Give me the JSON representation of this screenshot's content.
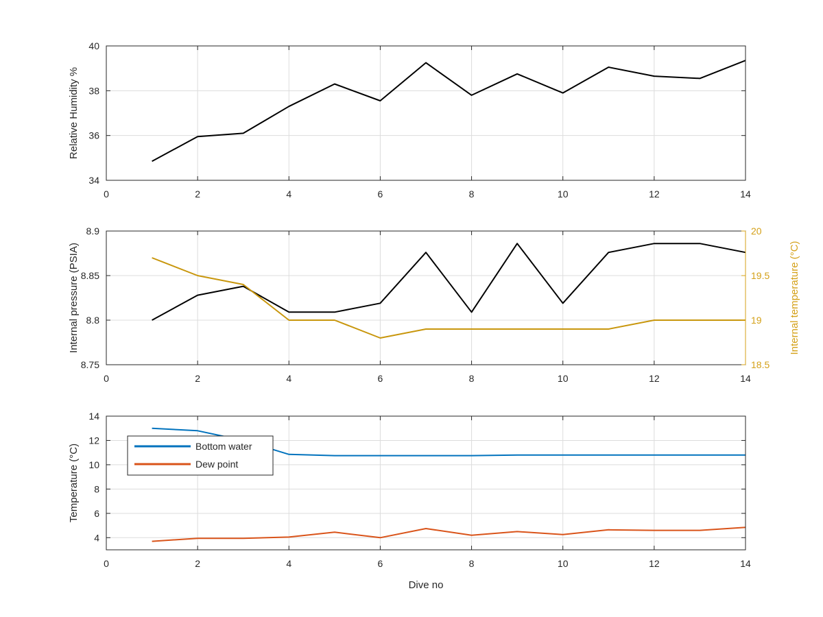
{
  "figure": {
    "background": "#ffffff"
  },
  "chart_data": [
    {
      "id": "humidity",
      "type": "line",
      "xlabel": "",
      "ylabel": "Relative Humidity %",
      "xlim": [
        0,
        14
      ],
      "ylim": [
        34,
        40
      ],
      "xticks": [
        0,
        2,
        4,
        6,
        8,
        10,
        12,
        14
      ],
      "yticks": [
        34,
        36,
        38,
        40
      ],
      "grid": true,
      "x": [
        1,
        2,
        3,
        4,
        5,
        6,
        7,
        8,
        9,
        10,
        11,
        12,
        13,
        14
      ],
      "series": [
        {
          "color": "#000000",
          "values": [
            34.85,
            35.95,
            36.1,
            37.3,
            38.3,
            37.55,
            39.25,
            37.8,
            38.75,
            37.9,
            39.05,
            38.65,
            38.55,
            39.35
          ]
        }
      ]
    },
    {
      "id": "pressure-temperature",
      "type": "line",
      "xlabel": "",
      "ylabel": "Internal pressure (PSIA)",
      "y2label": "Internal temperature (°C)",
      "xlim": [
        0,
        14
      ],
      "ylim": [
        8.75,
        8.9
      ],
      "y2lim": [
        18.5,
        20
      ],
      "xticks": [
        0,
        2,
        4,
        6,
        8,
        10,
        12,
        14
      ],
      "yticks": [
        8.75,
        8.8,
        8.85,
        8.9
      ],
      "y2ticks": [
        18.5,
        19,
        19.5,
        20
      ],
      "y2color": "#D4A017",
      "grid": true,
      "x": [
        1,
        2,
        3,
        4,
        5,
        6,
        7,
        8,
        9,
        10,
        11,
        12,
        13,
        14
      ],
      "series": [
        {
          "axis": "left",
          "color": "#000000",
          "values": [
            8.8,
            8.828,
            8.838,
            8.809,
            8.809,
            8.819,
            8.876,
            8.809,
            8.886,
            8.819,
            8.876,
            8.886,
            8.886,
            8.876
          ]
        },
        {
          "axis": "right",
          "color": "#C8960C",
          "values": [
            19.7,
            19.5,
            19.4,
            19.0,
            19.0,
            18.8,
            18.9,
            18.9,
            18.9,
            18.9,
            18.9,
            19.0,
            19.0,
            19.0
          ]
        }
      ]
    },
    {
      "id": "temperature",
      "type": "line",
      "xlabel": "Dive no",
      "ylabel": "Temperature (°C)",
      "xlim": [
        0,
        14
      ],
      "ylim": [
        3,
        14
      ],
      "xticks": [
        0,
        2,
        4,
        6,
        8,
        10,
        12,
        14
      ],
      "yticks": [
        4,
        6,
        8,
        10,
        12,
        14
      ],
      "grid": true,
      "legend": "top-left",
      "x": [
        1,
        2,
        3,
        4,
        5,
        6,
        7,
        8,
        9,
        10,
        11,
        12,
        13,
        14
      ],
      "series": [
        {
          "name": "Bottom water",
          "color": "#0072BD",
          "values": [
            13.0,
            12.8,
            12.0,
            10.85,
            10.75,
            10.75,
            10.75,
            10.75,
            10.8,
            10.8,
            10.8,
            10.8,
            10.8,
            10.8
          ]
        },
        {
          "name": "Dew point",
          "color": "#D95319",
          "values": [
            3.7,
            3.95,
            3.95,
            4.05,
            4.45,
            4.0,
            4.75,
            4.2,
            4.5,
            4.25,
            4.65,
            4.6,
            4.6,
            4.85
          ]
        }
      ]
    }
  ]
}
